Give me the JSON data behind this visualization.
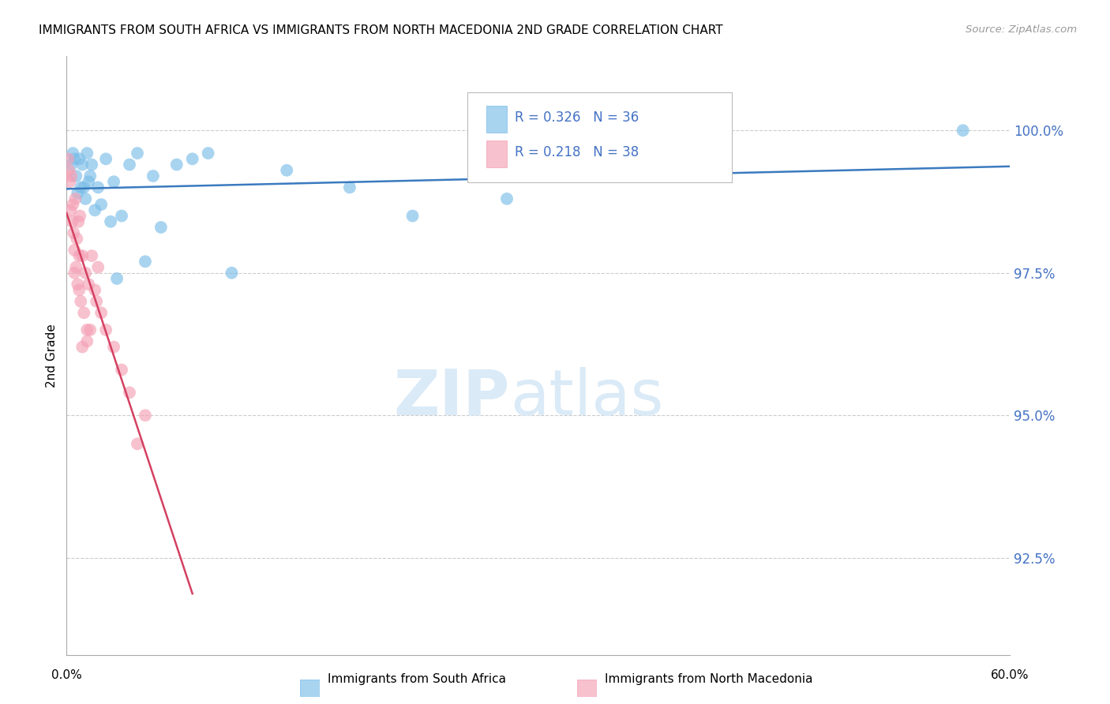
{
  "title": "IMMIGRANTS FROM SOUTH AFRICA VS IMMIGRANTS FROM NORTH MACEDONIA 2ND GRADE CORRELATION CHART",
  "source": "Source: ZipAtlas.com",
  "ylabel": "2nd Grade",
  "y_tick_values": [
    92.5,
    95.0,
    97.5,
    100.0
  ],
  "xlim": [
    0.0,
    60.0
  ],
  "ylim": [
    90.8,
    101.3
  ],
  "blue_label": "Immigrants from South Africa",
  "pink_label": "Immigrants from North Macedonia",
  "blue_color": "#7bbde8",
  "pink_color": "#f4a0b5",
  "blue_line_color": "#3a7abf",
  "pink_line_color": "#d44060",
  "blue_scatter_x": [
    0.3,
    0.4,
    0.5,
    0.6,
    0.8,
    0.9,
    1.0,
    1.1,
    1.2,
    1.3,
    1.5,
    1.6,
    1.8,
    2.0,
    2.2,
    2.5,
    2.8,
    3.0,
    3.5,
    4.0,
    4.5,
    5.0,
    5.5,
    6.0,
    7.0,
    8.0,
    9.0,
    10.5,
    14.0,
    18.0,
    22.0,
    28.0,
    57.0,
    0.7,
    1.4,
    3.2
  ],
  "blue_scatter_y": [
    99.4,
    99.6,
    99.5,
    99.2,
    99.5,
    99.0,
    99.4,
    99.0,
    98.8,
    99.6,
    99.2,
    99.4,
    98.6,
    99.0,
    98.7,
    99.5,
    98.4,
    99.1,
    98.5,
    99.4,
    99.6,
    97.7,
    99.2,
    98.3,
    99.4,
    99.5,
    99.6,
    97.5,
    99.3,
    99.0,
    98.5,
    98.8,
    100.0,
    98.9,
    99.1,
    97.4
  ],
  "pink_scatter_x": [
    0.1,
    0.15,
    0.2,
    0.25,
    0.3,
    0.35,
    0.4,
    0.45,
    0.5,
    0.55,
    0.6,
    0.65,
    0.7,
    0.75,
    0.8,
    0.85,
    0.9,
    1.0,
    1.1,
    1.2,
    1.3,
    1.4,
    1.5,
    1.6,
    1.8,
    2.0,
    2.2,
    2.5,
    3.0,
    3.5,
    4.0,
    4.5,
    5.0,
    1.0,
    0.5,
    0.8,
    1.3,
    1.9
  ],
  "pink_scatter_y": [
    99.5,
    99.3,
    99.1,
    98.6,
    99.2,
    98.4,
    98.7,
    98.2,
    97.9,
    98.8,
    97.6,
    98.1,
    97.3,
    98.4,
    97.2,
    98.5,
    97.0,
    97.8,
    96.8,
    97.5,
    96.5,
    97.3,
    96.5,
    97.8,
    97.2,
    97.6,
    96.8,
    96.5,
    96.2,
    95.8,
    95.4,
    94.5,
    95.0,
    96.2,
    97.5,
    97.8,
    96.3,
    97.0
  ],
  "watermark_color": "#daeaf7",
  "background_color": "#ffffff",
  "legend_blue_text": "R = 0.326   N = 36",
  "legend_pink_text": "R = 0.218   N = 38",
  "accent_color": "#4472c4"
}
